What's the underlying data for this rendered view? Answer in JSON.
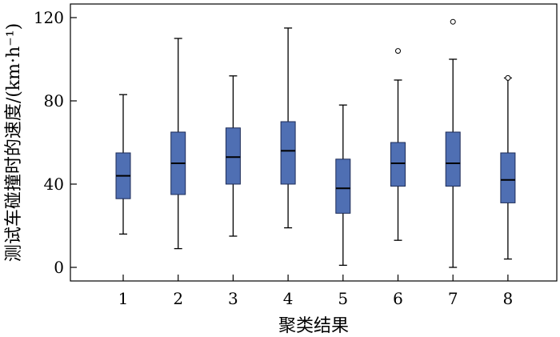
{
  "chart_data": {
    "type": "boxplot",
    "xlabel": "聚类结果",
    "ylabel": "测试车碰撞时的速度/(km·h⁻¹)",
    "ylim": [
      -6,
      126
    ],
    "yticks": [
      0,
      40,
      80,
      120
    ],
    "categories": [
      "1",
      "2",
      "3",
      "4",
      "5",
      "6",
      "7",
      "8"
    ],
    "box_color": "#4f6fb3",
    "series": [
      {
        "category": "1",
        "whisker_low": 16,
        "q1": 33,
        "median": 44,
        "q3": 55,
        "whisker_high": 83,
        "outliers": []
      },
      {
        "category": "2",
        "whisker_low": 9,
        "q1": 35,
        "median": 50,
        "q3": 65,
        "whisker_high": 110,
        "outliers": []
      },
      {
        "category": "3",
        "whisker_low": 15,
        "q1": 40,
        "median": 53,
        "q3": 67,
        "whisker_high": 92,
        "outliers": []
      },
      {
        "category": "4",
        "whisker_low": 19,
        "q1": 40,
        "median": 56,
        "q3": 70,
        "whisker_high": 115,
        "outliers": []
      },
      {
        "category": "5",
        "whisker_low": 1,
        "q1": 26,
        "median": 38,
        "q3": 52,
        "whisker_high": 78,
        "outliers": []
      },
      {
        "category": "6",
        "whisker_low": 13,
        "q1": 39,
        "median": 50,
        "q3": 60,
        "whisker_high": 90,
        "outliers": [
          104
        ]
      },
      {
        "category": "7",
        "whisker_low": 0,
        "q1": 39,
        "median": 50,
        "q3": 65,
        "whisker_high": 100,
        "outliers": [
          118
        ]
      },
      {
        "category": "8",
        "whisker_low": 4,
        "q1": 31,
        "median": 42,
        "q3": 55,
        "whisker_high": 91,
        "outliers": [
          91
        ]
      }
    ]
  }
}
